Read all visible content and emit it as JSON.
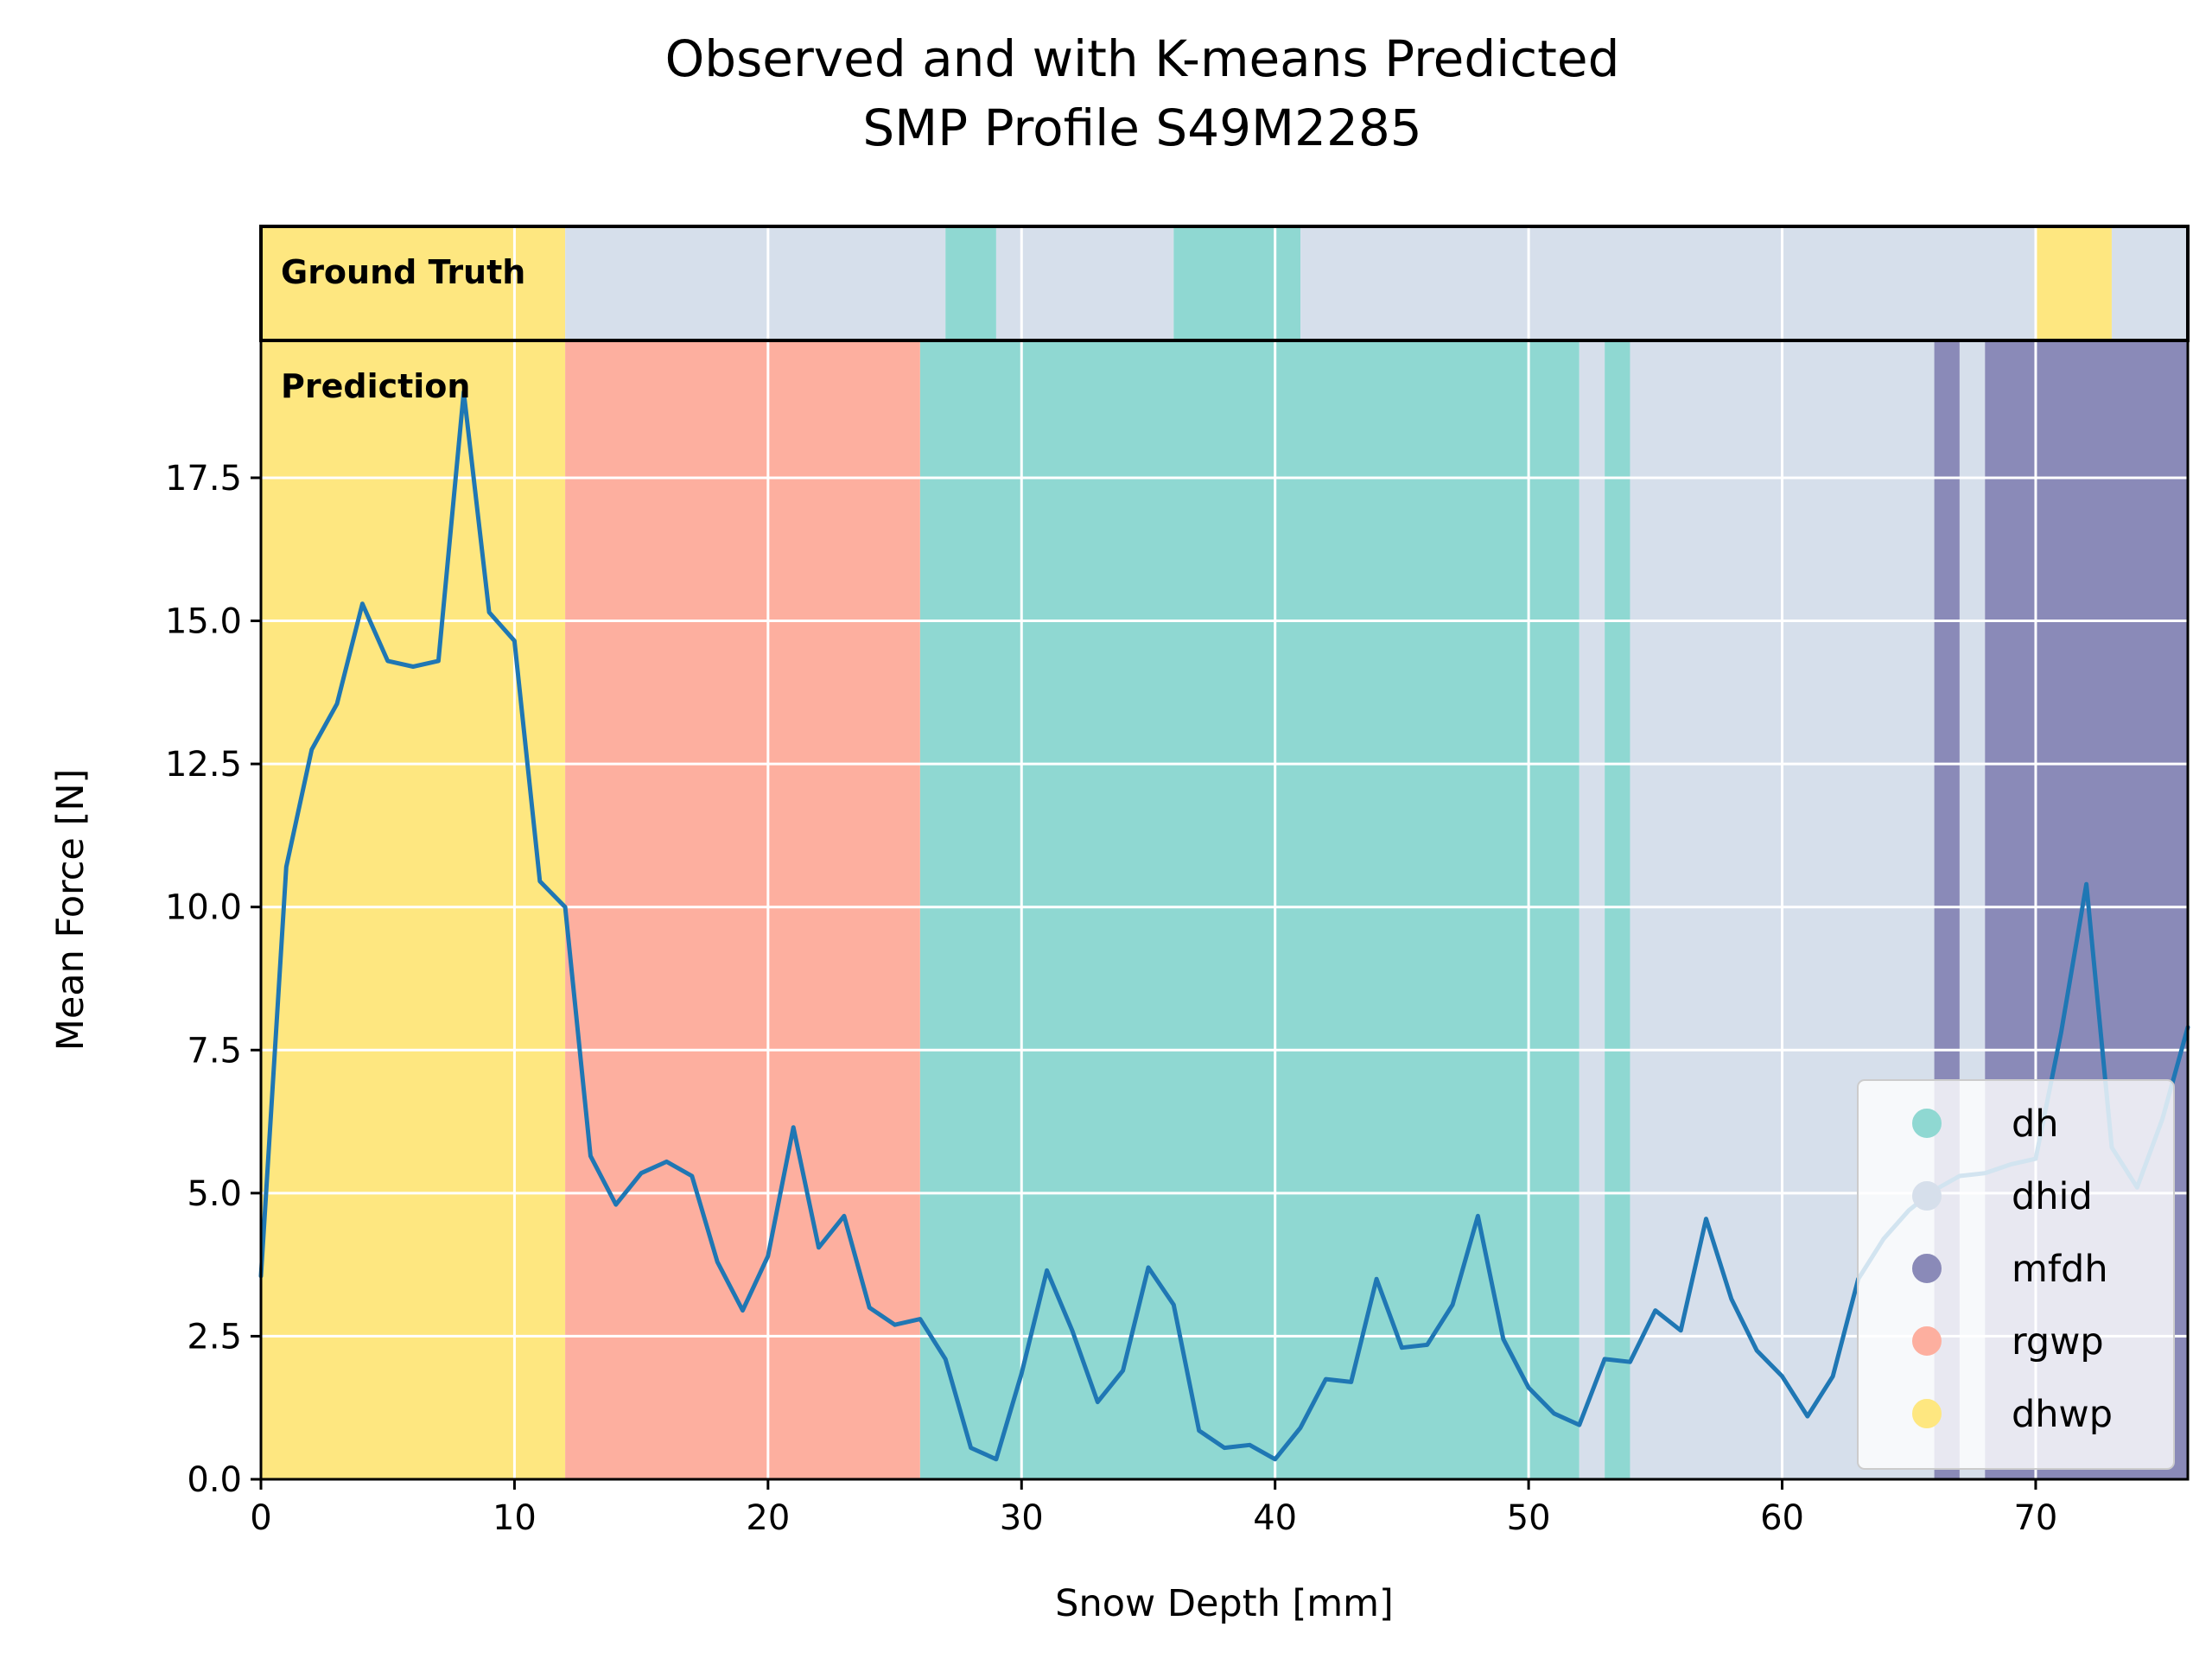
{
  "chart_data": {
    "type": "line",
    "title": [
      "Observed and with K-means Predicted",
      "SMP Profile S49M2285"
    ],
    "xlabel": "Snow Depth [mm]",
    "ylabel": "Mean Force [N]",
    "xlim": [
      0,
      76
    ],
    "ylim": [
      0,
      19.9
    ],
    "xticks": [
      0,
      10,
      20,
      30,
      40,
      50,
      60,
      70
    ],
    "xtick_labels": [
      "0",
      "10",
      "20",
      "30",
      "40",
      "50",
      "60",
      "70"
    ],
    "yticks": [
      0,
      2.5,
      5,
      7.5,
      10,
      12.5,
      15,
      17.5
    ],
    "ytick_labels": [
      "0.0",
      "2.5",
      "5.0",
      "7.5",
      "10.0",
      "12.5",
      "15.0",
      "17.5"
    ],
    "grid": true,
    "legend_position": "lower-right",
    "series": [
      {
        "color": "#1f77b4",
        "x": [
          0,
          1,
          2,
          3,
          4,
          5,
          6,
          7,
          8,
          9,
          10,
          11,
          12,
          13,
          14,
          15,
          16,
          17,
          18,
          19,
          20,
          21,
          22,
          23,
          24,
          25,
          26,
          27,
          28,
          29,
          30,
          31,
          32,
          33,
          34,
          35,
          36,
          37,
          38,
          39,
          40,
          41,
          42,
          43,
          44,
          45,
          46,
          47,
          48,
          49,
          50,
          51,
          52,
          53,
          54,
          55,
          56,
          57,
          58,
          59,
          60,
          61,
          62,
          63,
          64,
          65,
          66,
          67,
          68,
          69,
          70,
          71,
          72,
          73,
          74,
          75,
          76
        ],
        "y": [
          3.55,
          10.7,
          12.75,
          13.55,
          15.3,
          14.3,
          14.2,
          14.3,
          19.0,
          15.15,
          14.65,
          10.45,
          10.0,
          5.65,
          4.8,
          5.35,
          5.55,
          5.3,
          3.8,
          2.95,
          3.9,
          6.15,
          4.05,
          4.6,
          3.0,
          2.7,
          2.8,
          2.1,
          0.55,
          0.35,
          1.85,
          3.65,
          2.6,
          1.35,
          1.9,
          3.7,
          3.05,
          0.85,
          0.55,
          0.6,
          0.35,
          0.9,
          1.75,
          1.7,
          3.5,
          2.3,
          2.35,
          3.05,
          4.6,
          2.45,
          1.6,
          1.15,
          0.95,
          2.1,
          2.05,
          2.95,
          2.6,
          4.55,
          3.15,
          2.25,
          1.8,
          1.1,
          1.8,
          3.5,
          4.2,
          4.7,
          5.05,
          5.3,
          5.35,
          5.5,
          5.6,
          7.8,
          10.4,
          5.8,
          5.1,
          6.3,
          7.9
        ]
      }
    ],
    "classes": [
      {
        "name": "dh",
        "color": "#8fd8d2"
      },
      {
        "name": "dhid",
        "color": "#d6dfeb"
      },
      {
        "name": "mfdh",
        "color": "#8a8ab8"
      },
      {
        "name": "rgwp",
        "color": "#fdaf9f"
      },
      {
        "name": "dhwp",
        "color": "#fee780"
      }
    ],
    "ground_truth_label": "Ground Truth",
    "prediction_label": "Prediction",
    "ground_truth_segments": [
      {
        "start": 0,
        "end": 12,
        "class": "dhwp"
      },
      {
        "start": 12,
        "end": 27,
        "class": "dhid"
      },
      {
        "start": 27,
        "end": 29,
        "class": "dh"
      },
      {
        "start": 29,
        "end": 36,
        "class": "dhid"
      },
      {
        "start": 36,
        "end": 41,
        "class": "dh"
      },
      {
        "start": 41,
        "end": 70,
        "class": "dhid"
      },
      {
        "start": 70,
        "end": 73,
        "class": "dhwp"
      },
      {
        "start": 73,
        "end": 76,
        "class": "dhid"
      }
    ],
    "prediction_segments": [
      {
        "start": 0,
        "end": 12,
        "class": "dhwp"
      },
      {
        "start": 12,
        "end": 26,
        "class": "rgwp"
      },
      {
        "start": 26,
        "end": 52,
        "class": "dh"
      },
      {
        "start": 52,
        "end": 53,
        "class": "dhid"
      },
      {
        "start": 53,
        "end": 54,
        "class": "dh"
      },
      {
        "start": 54,
        "end": 66,
        "class": "dhid"
      },
      {
        "start": 66,
        "end": 67,
        "class": "mfdh"
      },
      {
        "start": 67,
        "end": 68,
        "class": "dhid"
      },
      {
        "start": 68,
        "end": 76,
        "class": "mfdh"
      }
    ]
  }
}
